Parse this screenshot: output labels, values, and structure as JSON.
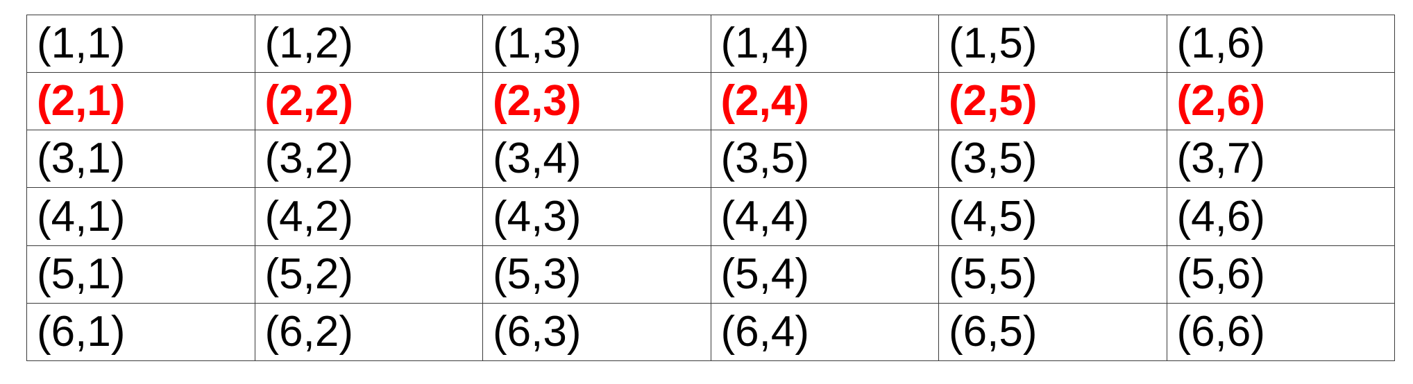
{
  "table": {
    "highlight_color": "#ff0000",
    "rows": [
      {
        "highlighted": false,
        "cells": [
          "(1,1)",
          "(1,2)",
          "(1,3)",
          "(1,4)",
          "(1,5)",
          "(1,6)"
        ]
      },
      {
        "highlighted": true,
        "cells": [
          "(2,1)",
          "(2,2)",
          "(2,3)",
          "(2,4)",
          "(2,5)",
          "(2,6)"
        ]
      },
      {
        "highlighted": false,
        "cells": [
          "(3,1)",
          "(3,2)",
          "(3,4)",
          "(3,5)",
          "(3,5)",
          "(3,7)"
        ]
      },
      {
        "highlighted": false,
        "cells": [
          "(4,1)",
          "(4,2)",
          "(4,3)",
          "(4,4)",
          "(4,5)",
          "(4,6)"
        ]
      },
      {
        "highlighted": false,
        "cells": [
          "(5,1)",
          "(5,2)",
          "(5,3)",
          "(5,4)",
          "(5,5)",
          "(5,6)"
        ]
      },
      {
        "highlighted": false,
        "cells": [
          "(6,1)",
          "(6,2)",
          "(6,3)",
          "(6,4)",
          "(6,5)",
          "(6,6)"
        ]
      }
    ]
  }
}
